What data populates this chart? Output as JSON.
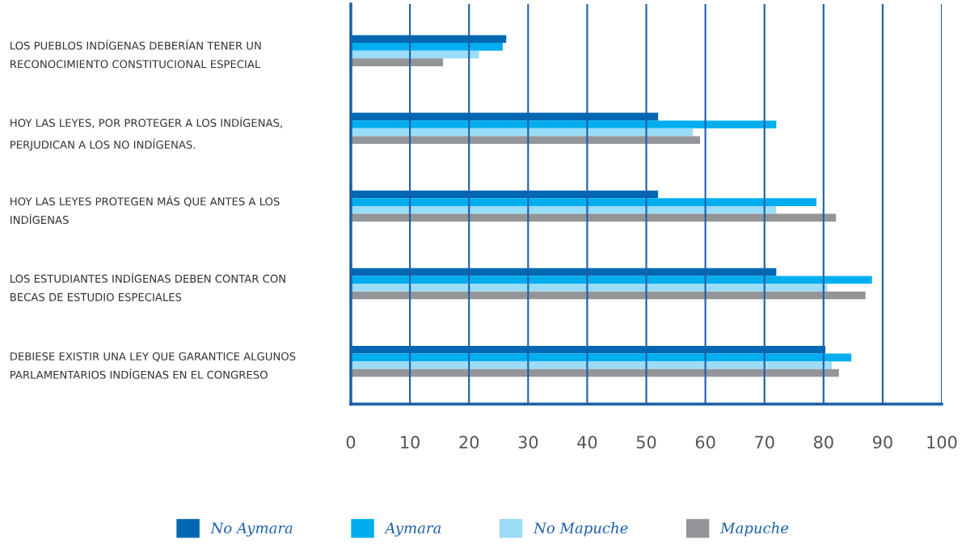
{
  "chart_data": {
    "type": "bar",
    "orientation": "horizontal",
    "categories": [
      "LOS PUEBLOS INDÍGENAS DEBERÍAN TENER UN\nRECONOCIMIENTO CONSTITUCIONAL ESPECIAL",
      "HOY LAS LEYES, POR PROTEGER A LOS INDÍGENAS,\nPERJUDICAN A LOS NO INDÍGENAS.",
      "HOY LAS LEYES PROTEGEN MÁS QUE ANTES A LOS\nINDÍGENAS",
      "LOS ESTUDIANTES INDÍGENAS DEBEN CONTAR CON\nBECAS DE ESTUDIO ESPECIALES",
      "DEBIESE EXISTIR UNA LEY QUE GARANTICE ALGUNOS\nPARLAMENTARIOS INDÍGENAS EN EL CONGRESO"
    ],
    "series": [
      {
        "name": "No Aymara",
        "color": "#0068b3",
        "values": [
          26.3,
          52,
          52,
          72,
          80.3
        ]
      },
      {
        "name": "Aymara",
        "color": "#00aeef",
        "values": [
          25.7,
          72,
          78.8,
          88.2,
          84.7
        ]
      },
      {
        "name": "No Mapuche",
        "color": "#9bdcf7",
        "values": [
          21.7,
          57.9,
          72,
          80.6,
          81.4
        ]
      },
      {
        "name": "Mapuche",
        "color": "#939598",
        "values": [
          15.6,
          59.1,
          82.1,
          87.1,
          82.6
        ]
      }
    ],
    "xlim": [
      0,
      100
    ],
    "xticks": [
      0,
      10,
      20,
      30,
      40,
      50,
      60,
      70,
      80,
      90,
      100
    ],
    "grid": "x",
    "legend": "bottom"
  }
}
